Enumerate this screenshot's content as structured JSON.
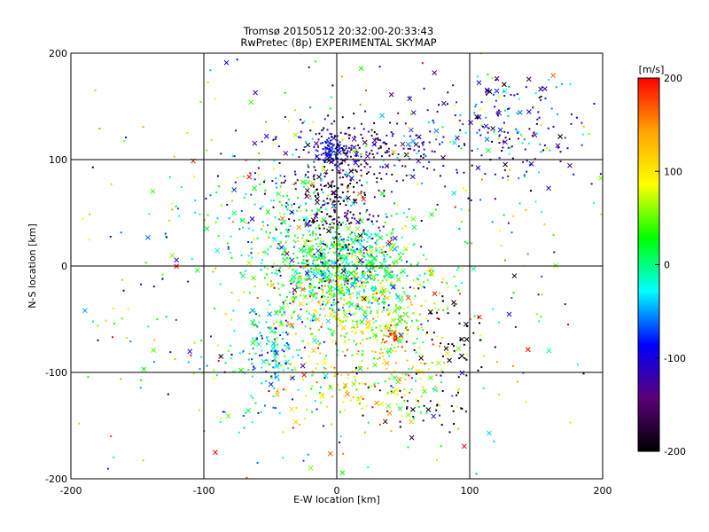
{
  "chart_data": {
    "type": "scatter",
    "title": "Tromsø 20150512 20:32:00-20:33:43",
    "subtitle": "RwPretec (8p) EXPERIMENTAL SKYMAP",
    "xlabel": "E-W location [km]",
    "ylabel": "N-S location [km]",
    "xlim": [
      -200,
      200
    ],
    "ylim": [
      -200,
      200
    ],
    "x_ticks": [
      -200,
      -100,
      0,
      100,
      200
    ],
    "y_ticks": [
      -200,
      -100,
      0,
      100,
      200
    ],
    "grid_lines_x": [
      -100,
      0,
      100
    ],
    "grid_lines_y": [
      -100,
      0,
      100
    ],
    "colorbar": {
      "label": "[m/s]",
      "range": [
        -200,
        200
      ],
      "ticks": [
        200,
        100,
        0,
        -100,
        -200
      ],
      "colors": [
        "#000000",
        "#5a0078",
        "#0000ff",
        "#00ffff",
        "#00ff00",
        "#ffff00",
        "#ffa500",
        "#ff0000"
      ]
    },
    "marker_types": [
      "dot",
      "x"
    ],
    "clusters": [
      {
        "x": 5,
        "y": 0,
        "sx": 28,
        "sy": 22,
        "n": 700,
        "v": 10,
        "sv": 40
      },
      {
        "x": 20,
        "y": -45,
        "sx": 35,
        "sy": 25,
        "n": 420,
        "v": 80,
        "sv": 55
      },
      {
        "x": 0,
        "y": 60,
        "sx": 18,
        "sy": 35,
        "n": 260,
        "v": -170,
        "sv": 30
      },
      {
        "x": 25,
        "y": 110,
        "sx": 40,
        "sy": 15,
        "n": 220,
        "v": -130,
        "sv": 45
      },
      {
        "x": -5,
        "y": 110,
        "sx": 6,
        "sy": 5,
        "n": 60,
        "v": -90,
        "sv": 15
      },
      {
        "x": 130,
        "y": 130,
        "sx": 30,
        "sy": 25,
        "n": 170,
        "v": -100,
        "sv": 55
      },
      {
        "x": -50,
        "y": -80,
        "sx": 12,
        "sy": 22,
        "n": 150,
        "v": -40,
        "sv": 40
      },
      {
        "x": 45,
        "y": -65,
        "sx": 5,
        "sy": 5,
        "n": 25,
        "v": 190,
        "sv": 10
      },
      {
        "x": 85,
        "y": -65,
        "sx": 15,
        "sy": 25,
        "n": 45,
        "v": -200,
        "sv": 10
      },
      {
        "x": 60,
        "y": -130,
        "sx": 20,
        "sy": 15,
        "n": 30,
        "v": -190,
        "sv": 20
      },
      {
        "x": 20,
        "y": -110,
        "sx": 35,
        "sy": 20,
        "n": 160,
        "v": 90,
        "sv": 50
      },
      {
        "x": -40,
        "y": 45,
        "sx": 30,
        "sy": 25,
        "n": 140,
        "v": 0,
        "sv": 60
      },
      {
        "x": 0,
        "y": 0,
        "sx": 110,
        "sy": 110,
        "n": 650,
        "v": 0,
        "sv": 110
      }
    ]
  }
}
